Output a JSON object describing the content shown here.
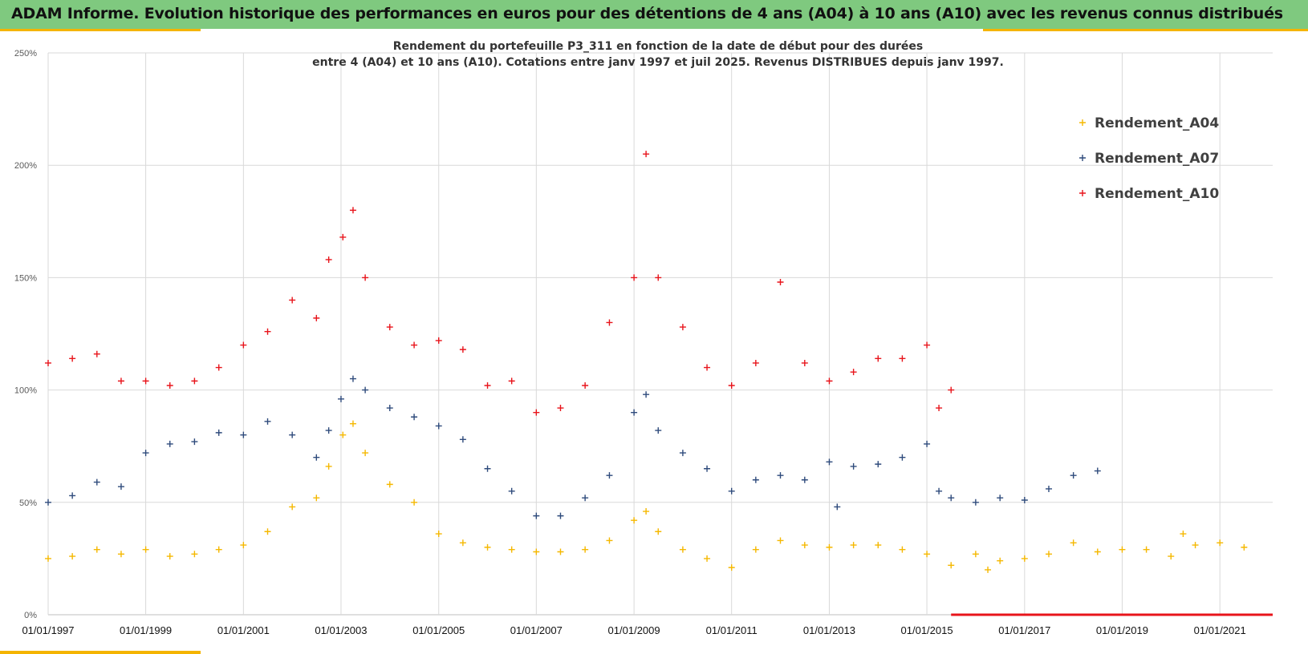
{
  "header": {
    "title": "ADAM Informe. Evolution historique des performances en euros pour des détentions de 4 ans (A04) à 10 ans (A10) avec les revenus connus distribués"
  },
  "colors": {
    "header_bg": "#7fc97f",
    "accent": "#f4b400",
    "A04": "#f5b800",
    "A07": "#2f4b7c",
    "A10": "#e8141b"
  },
  "chart_data": {
    "type": "scatter",
    "title_line1": "Rendement du portefeuille P3_311 en fonction de la date de début pour des durées",
    "title_line2": "entre 4 (A04) et 10 ans (A10). Cotations entre janv 1997 et juil 2025. Revenus DISTRIBUES depuis janv 1997.",
    "marker": "plus",
    "xlim": [
      "1997-01-01",
      "2022-01-31"
    ],
    "ylim": [
      0,
      250
    ],
    "y_unit": "%",
    "grid": true,
    "legend_position": "right",
    "y_ticks": [
      "0%",
      "50%",
      "100%",
      "150%",
      "200%",
      "250%"
    ],
    "x_ticks": [
      "01/01/1997",
      "01/01/1999",
      "01/01/2001",
      "01/01/2003",
      "01/01/2005",
      "01/01/2007",
      "01/01/2009",
      "01/01/2011",
      "01/01/2013",
      "01/01/2015",
      "01/01/2017",
      "01/01/2019",
      "01/01/2021"
    ],
    "series": [
      {
        "name": "Rendement_A04",
        "color": "#f5b800",
        "points": [
          [
            "1997-01-01",
            25
          ],
          [
            "1997-07-01",
            26
          ],
          [
            "1998-01-01",
            29
          ],
          [
            "1998-07-01",
            27
          ],
          [
            "1999-01-01",
            29
          ],
          [
            "1999-07-01",
            26
          ],
          [
            "2000-01-01",
            27
          ],
          [
            "2000-07-01",
            29
          ],
          [
            "2001-01-01",
            31
          ],
          [
            "2001-07-01",
            37
          ],
          [
            "2002-01-01",
            48
          ],
          [
            "2002-07-01",
            52
          ],
          [
            "2002-10-01",
            66
          ],
          [
            "2003-01-15",
            80
          ],
          [
            "2003-04-01",
            85
          ],
          [
            "2003-07-01",
            72
          ],
          [
            "2004-01-01",
            58
          ],
          [
            "2004-07-01",
            50
          ],
          [
            "2005-01-01",
            36
          ],
          [
            "2005-07-01",
            32
          ],
          [
            "2006-01-01",
            30
          ],
          [
            "2006-07-01",
            29
          ],
          [
            "2007-01-01",
            28
          ],
          [
            "2007-07-01",
            28
          ],
          [
            "2008-01-01",
            29
          ],
          [
            "2008-07-01",
            33
          ],
          [
            "2009-01-01",
            42
          ],
          [
            "2009-04-01",
            46
          ],
          [
            "2009-07-01",
            37
          ],
          [
            "2010-01-01",
            29
          ],
          [
            "2010-07-01",
            25
          ],
          [
            "2011-01-01",
            21
          ],
          [
            "2011-07-01",
            29
          ],
          [
            "2012-01-01",
            33
          ],
          [
            "2012-07-01",
            31
          ],
          [
            "2013-01-01",
            30
          ],
          [
            "2013-07-01",
            31
          ],
          [
            "2014-01-01",
            31
          ],
          [
            "2014-07-01",
            29
          ],
          [
            "2015-01-01",
            27
          ],
          [
            "2015-07-01",
            22
          ],
          [
            "2016-01-01",
            27
          ],
          [
            "2016-04-01",
            20
          ],
          [
            "2016-07-01",
            24
          ],
          [
            "2017-01-01",
            25
          ],
          [
            "2017-07-01",
            27
          ],
          [
            "2018-01-01",
            32
          ],
          [
            "2018-07-01",
            28
          ],
          [
            "2019-01-01",
            29
          ],
          [
            "2019-07-01",
            29
          ],
          [
            "2020-01-01",
            26
          ],
          [
            "2020-04-01",
            36
          ],
          [
            "2020-07-01",
            31
          ],
          [
            "2021-01-01",
            32
          ],
          [
            "2021-07-01",
            30
          ]
        ]
      },
      {
        "name": "Rendement_A07",
        "color": "#2f4b7c",
        "points": [
          [
            "1997-01-01",
            50
          ],
          [
            "1997-07-01",
            53
          ],
          [
            "1998-01-01",
            59
          ],
          [
            "1998-07-01",
            57
          ],
          [
            "1999-01-01",
            72
          ],
          [
            "1999-07-01",
            76
          ],
          [
            "2000-01-01",
            77
          ],
          [
            "2000-07-01",
            81
          ],
          [
            "2001-01-01",
            80
          ],
          [
            "2001-07-01",
            86
          ],
          [
            "2002-01-01",
            80
          ],
          [
            "2002-07-01",
            70
          ],
          [
            "2002-10-01",
            82
          ],
          [
            "2003-01-01",
            96
          ],
          [
            "2003-04-01",
            105
          ],
          [
            "2003-07-01",
            100
          ],
          [
            "2004-01-01",
            92
          ],
          [
            "2004-07-01",
            88
          ],
          [
            "2005-01-01",
            84
          ],
          [
            "2005-07-01",
            78
          ],
          [
            "2006-01-01",
            65
          ],
          [
            "2006-07-01",
            55
          ],
          [
            "2007-01-01",
            44
          ],
          [
            "2007-07-01",
            44
          ],
          [
            "2008-01-01",
            52
          ],
          [
            "2008-07-01",
            62
          ],
          [
            "2009-01-01",
            90
          ],
          [
            "2009-04-01",
            98
          ],
          [
            "2009-07-01",
            82
          ],
          [
            "2010-01-01",
            72
          ],
          [
            "2010-07-01",
            65
          ],
          [
            "2011-01-01",
            55
          ],
          [
            "2011-07-01",
            60
          ],
          [
            "2012-01-01",
            62
          ],
          [
            "2012-07-01",
            60
          ],
          [
            "2013-01-01",
            68
          ],
          [
            "2013-03-01",
            48
          ],
          [
            "2013-07-01",
            66
          ],
          [
            "2014-01-01",
            67
          ],
          [
            "2014-07-01",
            70
          ],
          [
            "2015-01-01",
            76
          ],
          [
            "2015-04-01",
            55
          ],
          [
            "2015-07-01",
            52
          ],
          [
            "2016-01-01",
            50
          ],
          [
            "2016-07-01",
            52
          ],
          [
            "2017-01-01",
            51
          ],
          [
            "2017-07-01",
            56
          ],
          [
            "2018-01-01",
            62
          ],
          [
            "2018-07-01",
            64
          ]
        ]
      },
      {
        "name": "Rendement_A10",
        "color": "#e8141b",
        "points": [
          [
            "1997-01-01",
            112
          ],
          [
            "1997-07-01",
            114
          ],
          [
            "1998-01-01",
            116
          ],
          [
            "1998-07-01",
            104
          ],
          [
            "1999-01-01",
            104
          ],
          [
            "1999-07-01",
            102
          ],
          [
            "2000-01-01",
            104
          ],
          [
            "2000-07-01",
            110
          ],
          [
            "2001-01-01",
            120
          ],
          [
            "2001-07-01",
            126
          ],
          [
            "2002-01-01",
            140
          ],
          [
            "2002-07-01",
            132
          ],
          [
            "2002-10-01",
            158
          ],
          [
            "2003-01-15",
            168
          ],
          [
            "2003-04-01",
            180
          ],
          [
            "2003-07-01",
            150
          ],
          [
            "2004-01-01",
            128
          ],
          [
            "2004-07-01",
            120
          ],
          [
            "2005-01-01",
            122
          ],
          [
            "2005-07-01",
            118
          ],
          [
            "2006-01-01",
            102
          ],
          [
            "2006-07-01",
            104
          ],
          [
            "2007-01-01",
            90
          ],
          [
            "2007-07-01",
            92
          ],
          [
            "2008-01-01",
            102
          ],
          [
            "2008-07-01",
            130
          ],
          [
            "2009-01-01",
            150
          ],
          [
            "2009-04-01",
            205
          ],
          [
            "2009-07-01",
            150
          ],
          [
            "2010-01-01",
            128
          ],
          [
            "2010-07-01",
            110
          ],
          [
            "2011-01-01",
            102
          ],
          [
            "2011-07-01",
            112
          ],
          [
            "2012-01-01",
            148
          ],
          [
            "2012-07-01",
            112
          ],
          [
            "2013-01-01",
            104
          ],
          [
            "2013-07-01",
            108
          ],
          [
            "2014-01-01",
            114
          ],
          [
            "2014-07-01",
            114
          ],
          [
            "2015-01-01",
            120
          ],
          [
            "2015-04-01",
            92
          ],
          [
            "2015-07-01",
            100
          ]
        ]
      }
    ],
    "zero_line_series": {
      "name": "Rendement_A10",
      "from": "2015-07-01",
      "to": "2022-01-31",
      "y": 0
    }
  }
}
